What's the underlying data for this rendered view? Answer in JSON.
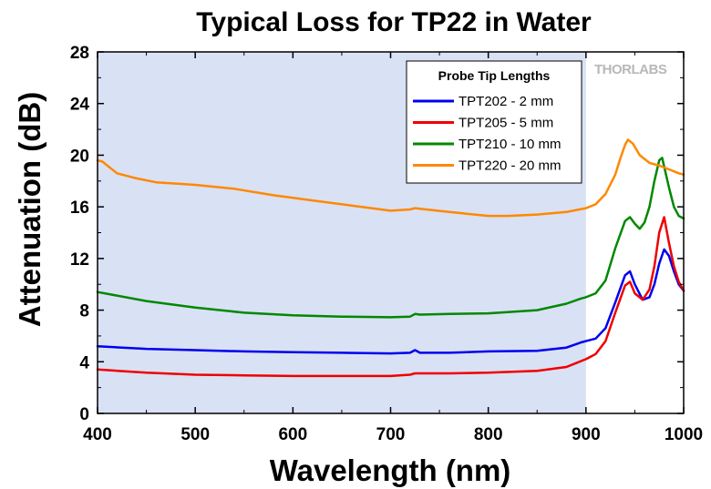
{
  "chart_data": {
    "type": "line",
    "title": "Typical Loss for TP22 in Water",
    "xlabel": "Wavelength (nm)",
    "ylabel": "Attenuation (dB)",
    "xlim": [
      400,
      1000
    ],
    "ylim": [
      0,
      28
    ],
    "xticks": [
      "400",
      "500",
      "600",
      "700",
      "800",
      "900",
      "1000"
    ],
    "yticks": [
      "0",
      "4",
      "8",
      "12",
      "16",
      "20",
      "24",
      "28"
    ],
    "shaded_region_x": [
      400,
      900
    ],
    "shaded_color": "#d9e1f4",
    "grid": false,
    "legend_title": "Probe Tip Lengths",
    "legend_position": "top-right",
    "watermark": "THORLABS",
    "series": [
      {
        "name": "TPT202 - 2 mm",
        "color": "#0000ee",
        "x": [
          400,
          450,
          500,
          550,
          600,
          650,
          700,
          720,
          725,
          730,
          760,
          800,
          850,
          880,
          895,
          900,
          910,
          920,
          930,
          940,
          945,
          950,
          958,
          965,
          970,
          975,
          980,
          985,
          990,
          995,
          1000
        ],
        "y": [
          5.2,
          5.0,
          4.9,
          4.8,
          4.75,
          4.7,
          4.65,
          4.7,
          4.9,
          4.7,
          4.7,
          4.8,
          4.85,
          5.1,
          5.5,
          5.6,
          5.8,
          6.6,
          8.6,
          10.7,
          11.0,
          10.0,
          8.8,
          9.0,
          10.0,
          11.6,
          12.7,
          12.2,
          11.0,
          10.0,
          9.5
        ]
      },
      {
        "name": "TPT205 - 5 mm",
        "color": "#ee0000",
        "x": [
          400,
          450,
          500,
          550,
          600,
          650,
          700,
          720,
          725,
          730,
          760,
          800,
          850,
          880,
          890,
          900,
          910,
          920,
          930,
          940,
          945,
          950,
          958,
          965,
          970,
          975,
          980,
          985,
          990,
          995,
          1000
        ],
        "y": [
          3.4,
          3.15,
          3.0,
          2.95,
          2.9,
          2.9,
          2.9,
          3.0,
          3.1,
          3.1,
          3.1,
          3.15,
          3.3,
          3.6,
          3.9,
          4.2,
          4.6,
          5.6,
          7.8,
          9.9,
          10.2,
          9.3,
          8.8,
          9.6,
          11.4,
          14.0,
          15.2,
          13.2,
          11.4,
          10.2,
          9.5
        ]
      },
      {
        "name": "TPT210 - 10 mm",
        "color": "#008800",
        "x": [
          400,
          450,
          500,
          550,
          600,
          650,
          700,
          720,
          725,
          730,
          760,
          800,
          850,
          880,
          895,
          900,
          910,
          920,
          930,
          940,
          945,
          950,
          955,
          960,
          965,
          970,
          975,
          978,
          985,
          990,
          995,
          1000
        ],
        "y": [
          9.4,
          8.7,
          8.2,
          7.8,
          7.6,
          7.5,
          7.45,
          7.5,
          7.7,
          7.65,
          7.7,
          7.75,
          8.0,
          8.5,
          8.9,
          9.0,
          9.3,
          10.3,
          12.8,
          14.9,
          15.2,
          14.7,
          14.3,
          14.8,
          16.0,
          18.0,
          19.6,
          19.8,
          17.5,
          16.0,
          15.3,
          15.1
        ]
      },
      {
        "name": "TPT220 - 20 mm",
        "color": "#ff8800",
        "x": [
          400,
          405,
          410,
          420,
          440,
          460,
          500,
          540,
          580,
          620,
          660,
          700,
          720,
          725,
          730,
          760,
          800,
          820,
          850,
          880,
          900,
          910,
          920,
          930,
          935,
          940,
          943,
          948,
          955,
          965,
          975,
          985,
          995,
          1000
        ],
        "y": [
          19.6,
          19.5,
          19.2,
          18.6,
          18.2,
          17.9,
          17.7,
          17.4,
          16.9,
          16.5,
          16.1,
          15.7,
          15.8,
          15.9,
          15.85,
          15.6,
          15.3,
          15.3,
          15.4,
          15.6,
          15.9,
          16.2,
          17.0,
          18.5,
          19.7,
          20.8,
          21.2,
          20.9,
          20.0,
          19.4,
          19.2,
          18.9,
          18.6,
          18.5
        ]
      }
    ]
  }
}
